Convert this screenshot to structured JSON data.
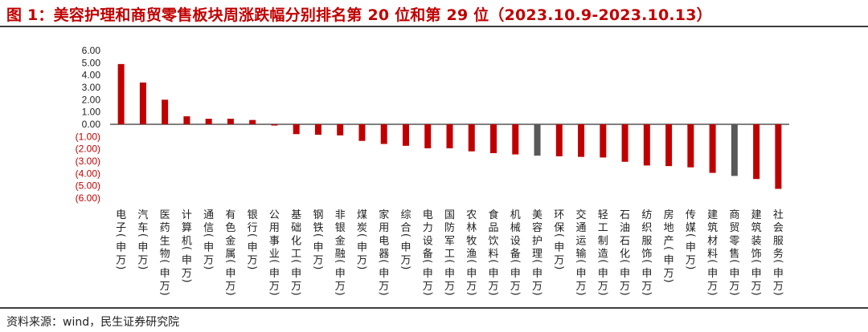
{
  "title": "图 1：美容护理和商贸零售板块周涨跌幅分别排名第 20 位和第 29 位（2023.10.9-2023.10.13）",
  "source": "资料来源：wind，民生证券研究院",
  "chart_data": {
    "type": "bar",
    "categories": [
      "电子(申万)",
      "汽车(申万)",
      "医药生物(申万)",
      "计算机(申万)",
      "通信(申万)",
      "有色金属(申万)",
      "银行(申万)",
      "公用事业(申万)",
      "基础化工(申万)",
      "钢铁(申万)",
      "非银金融(申万)",
      "煤炭(申万)",
      "家用电器(申万)",
      "综合(申万)",
      "电力设备(申万)",
      "国防军工(申万)",
      "农林牧渔(申万)",
      "食品饮料(申万)",
      "机械设备(申万)",
      "美容护理(申万)",
      "环保(申万)",
      "交通运输(申万)",
      "轻工制造(申万)",
      "石油石化(申万)",
      "纺织服饰(申万)",
      "房地产(申万)",
      "传媒(申万)",
      "建筑材料(申万)",
      "商贸零售(申万)",
      "建筑装饰(申万)",
      "社会服务(申万)"
    ],
    "values": [
      4.9,
      3.4,
      2.0,
      0.65,
      0.45,
      0.45,
      0.35,
      -0.1,
      -0.8,
      -0.85,
      -0.9,
      -1.35,
      -1.6,
      -1.75,
      -1.95,
      -1.95,
      -2.2,
      -2.35,
      -2.45,
      -2.55,
      -2.6,
      -2.65,
      -2.7,
      -3.05,
      -3.35,
      -3.4,
      -3.5,
      -3.95,
      -4.2,
      -4.45,
      -5.25
    ],
    "highlight": [
      "美容护理(申万)",
      "商贸零售(申万)"
    ],
    "ylim": [
      -6,
      6
    ],
    "yticks": [
      "6.00",
      "5.00",
      "4.00",
      "3.00",
      "2.00",
      "1.00",
      "0.00",
      "(1.00)",
      "(2.00)",
      "(3.00)",
      "(4.00)",
      "(5.00)",
      "(6.00)"
    ],
    "colors": {
      "bar": "#c00000",
      "highlight": "#595959",
      "negative_tick": "#c00000",
      "positive_tick": "#222222",
      "axis": "#000000"
    },
    "grid": false,
    "legend": "none"
  }
}
